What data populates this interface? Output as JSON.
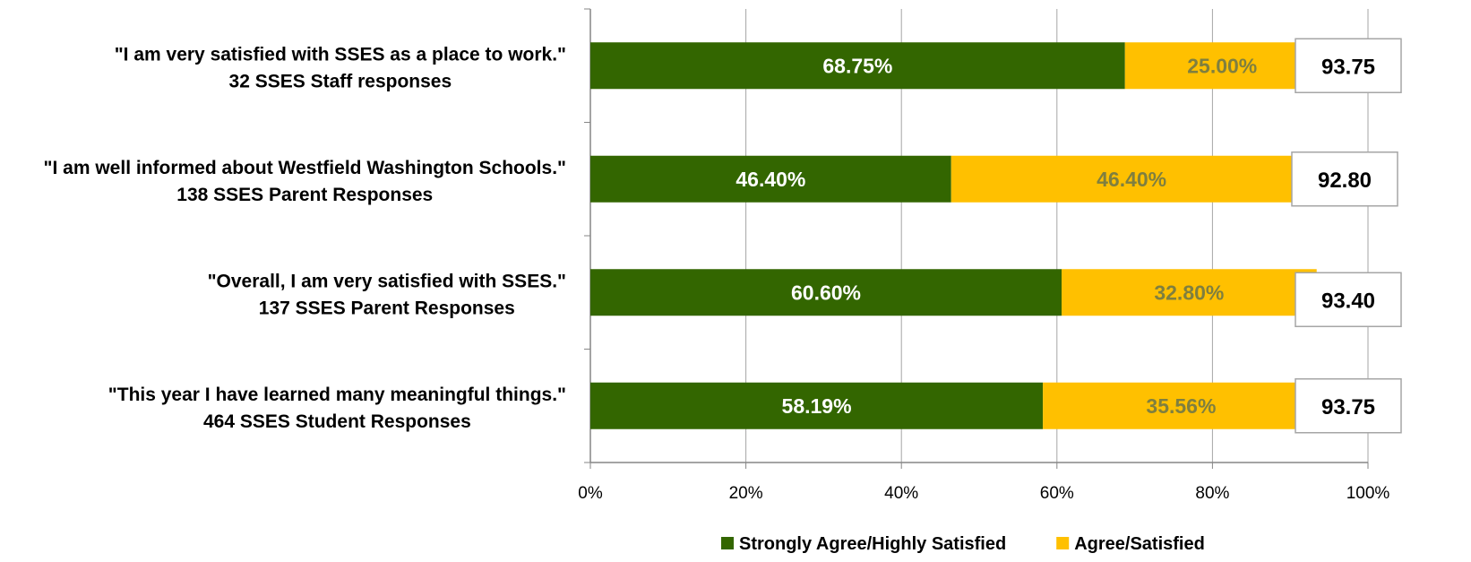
{
  "chart_data": {
    "type": "bar",
    "orientation": "horizontal",
    "stacked": true,
    "categories": [
      {
        "line1": "\"I am very satisfied with SSES as a place to work.\"",
        "line2": "32 SSES Staff responses"
      },
      {
        "line1": "\"I am well informed about Westfield Washington Schools.\"",
        "line2": "138 SSES Parent Responses"
      },
      {
        "line1": "\"Overall, I am very satisfied with SSES.\"",
        "line2": "137 SSES Parent Responses"
      },
      {
        "line1": "\"This year I have learned many meaningful things.\"",
        "line2": "464 SSES Student Responses"
      }
    ],
    "series": [
      {
        "name": "Strongly Agree/Highly Satisfied",
        "color": "#336600",
        "label_color": "#ffffff",
        "values": [
          68.75,
          46.4,
          60.6,
          58.19
        ],
        "labels": [
          "68.75%",
          "46.40%",
          "60.60%",
          "58.19%"
        ]
      },
      {
        "name": "Agree/Satisfied",
        "color": "#ffc000",
        "label_color": "#7f7f3f",
        "values": [
          25.0,
          46.4,
          32.8,
          35.56
        ],
        "labels": [
          "25.00%",
          "46.40%",
          "32.80%",
          "35.56%"
        ]
      }
    ],
    "totals": [
      "93.75",
      "92.80",
      "93.40",
      "93.75"
    ],
    "xlim": [
      0,
      100
    ],
    "x_ticks": [
      "0%",
      "20%",
      "40%",
      "60%",
      "80%",
      "100%"
    ],
    "grid": true,
    "legend_position": "bottom"
  }
}
